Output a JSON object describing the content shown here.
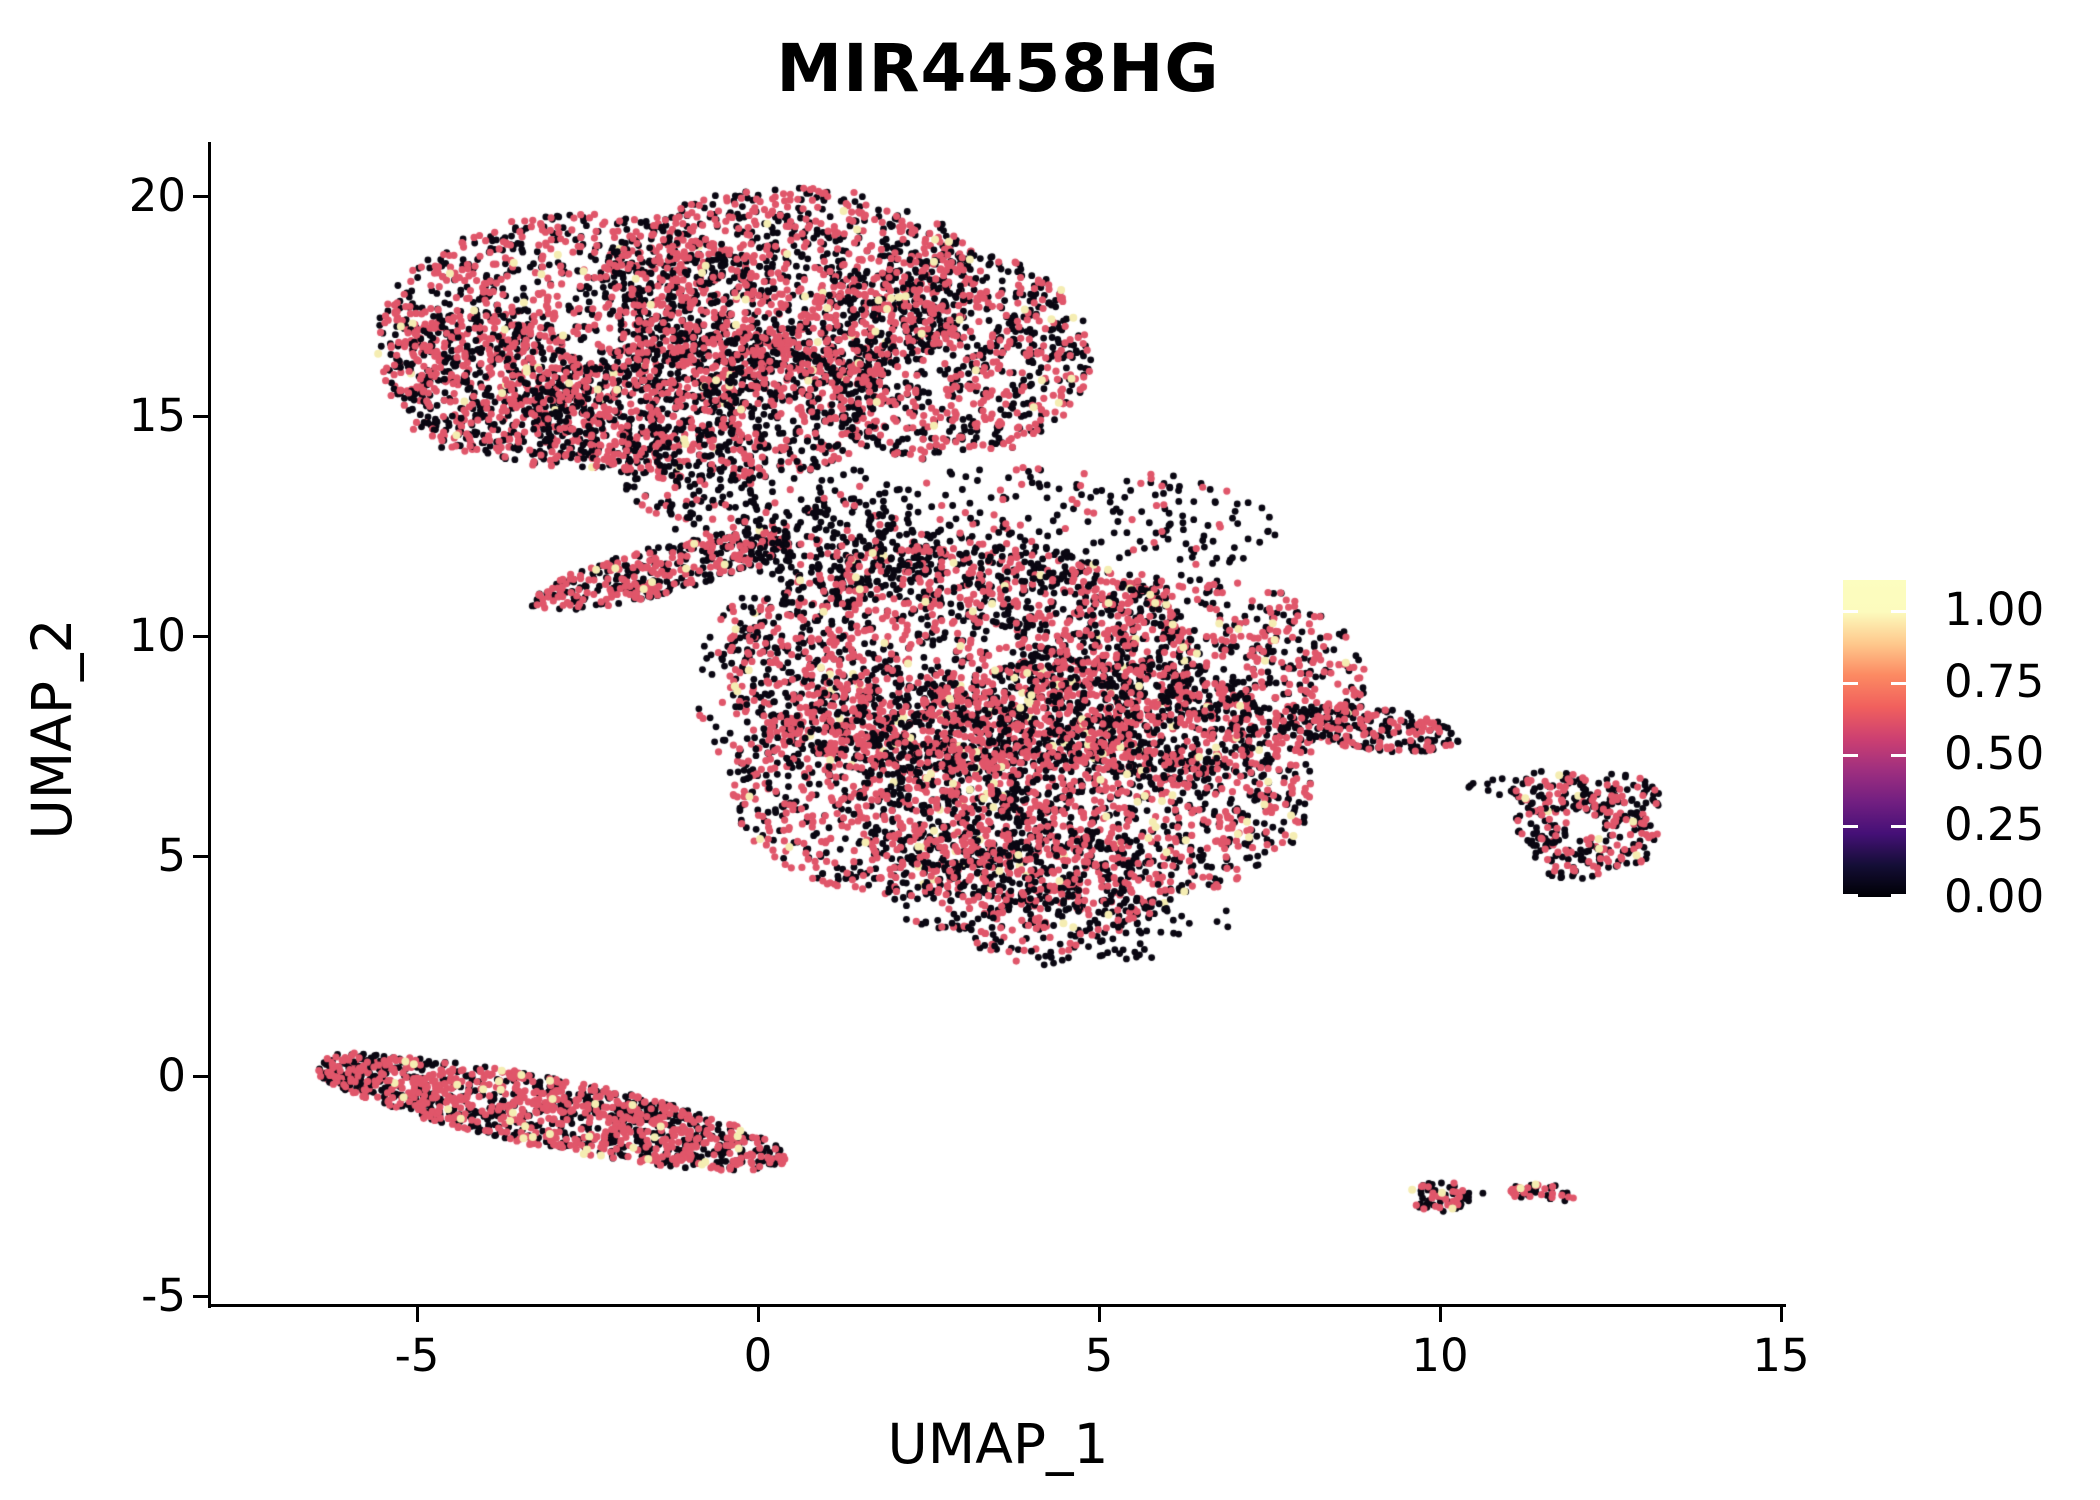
{
  "title": "MIR4458HG",
  "axes": {
    "x_label": "UMAP_1",
    "y_label": "UMAP_2",
    "x_tick_labels": [
      "-5",
      "0",
      "5",
      "10",
      "15"
    ],
    "x_tick_values": [
      -5,
      0,
      5,
      10,
      15
    ],
    "y_tick_labels": [
      "-5",
      "0",
      "5",
      "10",
      "15",
      "20"
    ],
    "y_tick_values": [
      -5,
      0,
      5,
      10,
      15,
      20
    ]
  },
  "legend": {
    "tick_labels": [
      "1.00",
      "0.75",
      "0.50",
      "0.25",
      "0.00"
    ],
    "tick_values": [
      1.0,
      0.75,
      0.5,
      0.25,
      0.0
    ],
    "colormap": "magma",
    "bar_top_value": 1.105
  },
  "chart_data": {
    "type": "scatter",
    "title": "MIR4458HG",
    "xlabel": "UMAP_1",
    "ylabel": "UMAP_2",
    "xlim": [
      -8.0,
      15.1
    ],
    "ylim": [
      -5.2,
      21.2
    ],
    "grid": false,
    "legend_position": "right",
    "colorscale": {
      "min": 0.0,
      "max": 1.1,
      "colormap": "magma"
    },
    "point_colors": {
      "zero": "#0a0712",
      "mid": "#e0566a",
      "high": "#f5edb2"
    },
    "point_radius_px": 3.4,
    "clusters": [
      {
        "name": "top-lobe-left",
        "cx": -2.6,
        "cy": 16.7,
        "rx": 3.0,
        "ry": 2.9,
        "rot": 0,
        "n": 1500,
        "p_black": 0.5,
        "p_pink": 0.48,
        "p_cream": 0.02
      },
      {
        "name": "top-lobe-upper",
        "cx": 0.5,
        "cy": 18.0,
        "rx": 2.8,
        "ry": 2.2,
        "rot": 0,
        "n": 1150,
        "p_black": 0.5,
        "p_pink": 0.48,
        "p_cream": 0.02
      },
      {
        "name": "top-lobe-right",
        "cx": 2.7,
        "cy": 16.4,
        "rx": 2.2,
        "ry": 2.4,
        "rot": 0,
        "n": 950,
        "p_black": 0.56,
        "p_pink": 0.42,
        "p_cream": 0.02
      },
      {
        "name": "top-lobe-lower",
        "cx": -0.7,
        "cy": 15.2,
        "rx": 2.7,
        "ry": 1.7,
        "rot": 0,
        "n": 800,
        "p_black": 0.55,
        "p_pink": 0.44,
        "p_cream": 0.01
      },
      {
        "name": "top-lobe-west",
        "cx": -4.0,
        "cy": 15.8,
        "rx": 1.5,
        "ry": 1.7,
        "rot": 0,
        "n": 380,
        "p_black": 0.52,
        "p_pink": 0.47,
        "p_cream": 0.01
      },
      {
        "name": "top-tail-sparse",
        "cx": -0.2,
        "cy": 13.6,
        "rx": 1.8,
        "ry": 1.2,
        "rot": 0,
        "n": 150,
        "p_black": 0.82,
        "p_pink": 0.18,
        "p_cream": 0.0
      },
      {
        "name": "top-tail-sparse2",
        "cx": -0.6,
        "cy": 12.8,
        "rx": 0.9,
        "ry": 0.9,
        "rot": 0,
        "n": 60,
        "p_black": 0.75,
        "p_pink": 0.25,
        "p_cream": 0.0
      },
      {
        "name": "bridge",
        "cx": -1.4,
        "cy": 11.5,
        "rx": 2.0,
        "ry": 0.55,
        "rot": -14,
        "n": 420,
        "p_black": 0.5,
        "p_pink": 0.48,
        "p_cream": 0.02
      },
      {
        "name": "bridge-right-sparse",
        "cx": 1.3,
        "cy": 12.0,
        "rx": 1.5,
        "ry": 1.0,
        "rot": 0,
        "n": 150,
        "p_black": 0.78,
        "p_pink": 0.22,
        "p_cream": 0.0
      },
      {
        "name": "mid-scatter",
        "cx": 2.8,
        "cy": 11.3,
        "rx": 2.2,
        "ry": 1.4,
        "rot": 0,
        "n": 170,
        "p_black": 0.72,
        "p_pink": 0.28,
        "p_cream": 0.0
      },
      {
        "name": "mid-lobe-nw",
        "cx": 3.0,
        "cy": 9.4,
        "rx": 3.5,
        "ry": 2.7,
        "rot": 0,
        "n": 1550,
        "p_black": 0.5,
        "p_pink": 0.47,
        "p_cream": 0.03
      },
      {
        "name": "mid-lobe-se",
        "cx": 4.8,
        "cy": 6.6,
        "rx": 3.4,
        "ry": 2.9,
        "rot": 0,
        "n": 1550,
        "p_black": 0.52,
        "p_pink": 0.44,
        "p_cream": 0.04
      },
      {
        "name": "mid-lobe-sw",
        "cx": 2.1,
        "cy": 6.6,
        "rx": 2.5,
        "ry": 2.5,
        "rot": 0,
        "n": 900,
        "p_black": 0.5,
        "p_pink": 0.48,
        "p_cream": 0.02
      },
      {
        "name": "mid-lobe-ne",
        "cx": 6.4,
        "cy": 9.0,
        "rx": 2.5,
        "ry": 2.3,
        "rot": 0,
        "n": 850,
        "p_black": 0.55,
        "p_pink": 0.43,
        "p_cream": 0.02
      },
      {
        "name": "mid-bottom",
        "cx": 4.0,
        "cy": 4.3,
        "rx": 2.1,
        "ry": 1.5,
        "rot": 0,
        "n": 430,
        "p_black": 0.56,
        "p_pink": 0.42,
        "p_cream": 0.02
      },
      {
        "name": "mid-top-fringe",
        "cx": 4.2,
        "cy": 12.4,
        "rx": 3.4,
        "ry": 1.5,
        "rot": 0,
        "n": 300,
        "p_black": 0.78,
        "p_pink": 0.22,
        "p_cream": 0.0
      },
      {
        "name": "mid-left-fringe",
        "cx": 0.2,
        "cy": 8.7,
        "rx": 1.3,
        "ry": 2.3,
        "rot": 0,
        "n": 140,
        "p_black": 0.7,
        "p_pink": 0.3,
        "p_cream": 0.0
      },
      {
        "name": "mid-right-taper",
        "cx": 8.9,
        "cy": 7.9,
        "rx": 1.4,
        "ry": 0.5,
        "rot": 6,
        "n": 230,
        "p_black": 0.6,
        "p_pink": 0.4,
        "p_cream": 0.0
      },
      {
        "name": "mid-bottom-fringe",
        "cx": 4.6,
        "cy": 3.4,
        "rx": 1.9,
        "ry": 0.9,
        "rot": 0,
        "n": 80,
        "p_black": 0.8,
        "p_pink": 0.2,
        "p_cream": 0.0
      },
      {
        "name": "mid-isolated-dots",
        "cx": 6.8,
        "cy": 3.6,
        "rx": 0.4,
        "ry": 0.25,
        "rot": 0,
        "n": 3,
        "p_black": 1.0,
        "p_pink": 0.0,
        "p_cream": 0.0
      },
      {
        "name": "ring-nw",
        "cx": 11.65,
        "cy": 6.45,
        "rx": 0.6,
        "ry": 0.5,
        "rot": 0,
        "n": 75,
        "p_black": 0.55,
        "p_pink": 0.42,
        "p_cream": 0.03
      },
      {
        "name": "ring-ne",
        "cx": 12.6,
        "cy": 6.35,
        "rx": 0.65,
        "ry": 0.55,
        "rot": 0,
        "n": 85,
        "p_black": 0.55,
        "p_pink": 0.42,
        "p_cream": 0.03
      },
      {
        "name": "ring-se",
        "cx": 12.7,
        "cy": 5.35,
        "rx": 0.55,
        "ry": 0.6,
        "rot": 0,
        "n": 70,
        "p_black": 0.55,
        "p_pink": 0.42,
        "p_cream": 0.03
      },
      {
        "name": "ring-s",
        "cx": 11.95,
        "cy": 4.95,
        "rx": 0.6,
        "ry": 0.5,
        "rot": 0,
        "n": 60,
        "p_black": 0.55,
        "p_pink": 0.42,
        "p_cream": 0.03
      },
      {
        "name": "ring-w",
        "cx": 11.5,
        "cy": 5.7,
        "rx": 0.4,
        "ry": 0.55,
        "rot": 0,
        "n": 45,
        "p_black": 0.55,
        "p_pink": 0.45,
        "p_cream": 0.0
      },
      {
        "name": "ring-trail",
        "cx": 10.9,
        "cy": 6.55,
        "rx": 0.6,
        "ry": 0.22,
        "rot": 0,
        "n": 16,
        "p_black": 0.6,
        "p_pink": 0.4,
        "p_cream": 0.0
      },
      {
        "name": "cigar",
        "cx": -3.0,
        "cy": -0.85,
        "rx": 3.5,
        "ry": 0.8,
        "rot": 11,
        "n": 1250,
        "p_black": 0.48,
        "p_pink": 0.49,
        "p_cream": 0.03
      },
      {
        "name": "cigar-tip",
        "cx": -5.9,
        "cy": 0.1,
        "rx": 0.55,
        "ry": 0.45,
        "rot": 0,
        "n": 90,
        "p_black": 0.5,
        "p_pink": 0.5,
        "p_cream": 0.0
      },
      {
        "name": "islet-left",
        "cx": 10.0,
        "cy": -2.72,
        "rx": 0.45,
        "ry": 0.36,
        "rot": 0,
        "n": 65,
        "p_black": 0.62,
        "p_pink": 0.36,
        "p_cream": 0.02
      },
      {
        "name": "islet-dot",
        "cx": 10.67,
        "cy": -2.66,
        "rx": 0.05,
        "ry": 0.05,
        "rot": 0,
        "n": 1,
        "p_black": 1.0,
        "p_pink": 0.0,
        "p_cream": 0.0
      },
      {
        "name": "islet-right",
        "cx": 11.55,
        "cy": -2.66,
        "rx": 0.55,
        "ry": 0.2,
        "rot": 3,
        "n": 50,
        "p_black": 0.58,
        "p_pink": 0.36,
        "p_cream": 0.06
      }
    ]
  }
}
